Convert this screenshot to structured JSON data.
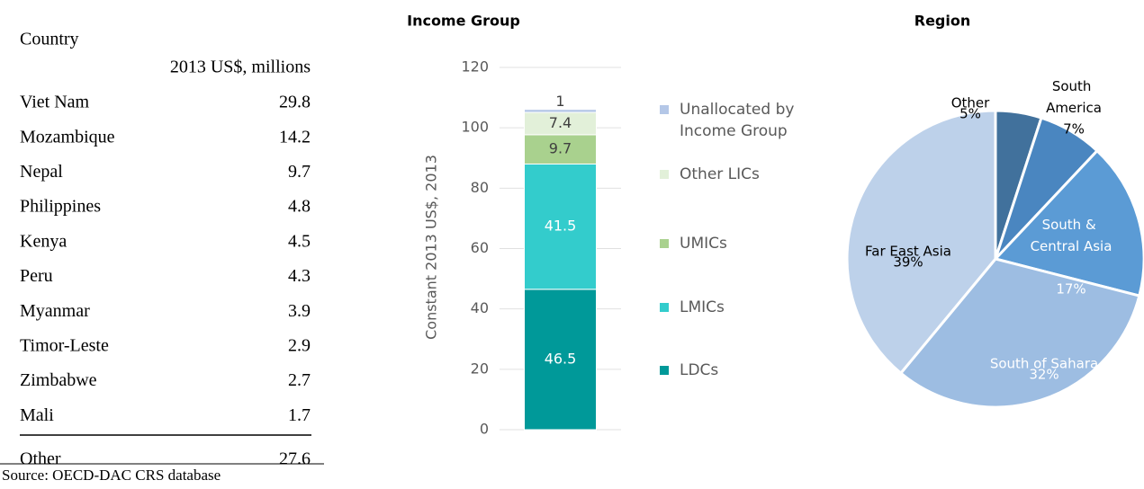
{
  "table": {
    "header": [
      "Country",
      "2013 US$, millions"
    ],
    "rows": [
      [
        "Viet Nam",
        29.8
      ],
      [
        "Mozambique",
        14.2
      ],
      [
        "Nepal",
        9.7
      ],
      [
        "Philippines",
        4.8
      ],
      [
        "Kenya",
        4.5
      ],
      [
        "Peru",
        4.3
      ],
      [
        "Myanmar",
        3.9
      ],
      [
        "Timor-Leste",
        2.9
      ],
      [
        "Zimbabwe",
        2.7
      ],
      [
        "Mali",
        1.7
      ],
      [
        "Other",
        27.6
      ]
    ],
    "source": "Source: OECD-DAC CRS database"
  },
  "chart_data": [
    {
      "type": "bar",
      "title": "Income Group",
      "ylabel": "Constant 2013 US$, 2013",
      "categories": [
        null
      ],
      "series": [
        {
          "name": "LDCs",
          "color": "#009999",
          "values": [
            46.5
          ]
        },
        {
          "name": "LMICs",
          "color": "#33cccc",
          "values": [
            41.5
          ]
        },
        {
          "name": "UMICs",
          "color": "#a9d18e",
          "values": [
            9.7
          ]
        },
        {
          "name": "Other LICs",
          "color": "#e2f0d9",
          "values": [
            7.4
          ]
        },
        {
          "name": "Unallocated by Income Group",
          "color": "#b4c7e7",
          "values": [
            1
          ]
        }
      ],
      "ylim": [
        0,
        120
      ],
      "yticks": [
        0,
        20,
        40,
        60,
        80,
        100,
        120
      ],
      "grid": true,
      "stacked": true,
      "legend": "right"
    },
    {
      "type": "pie",
      "title": "Region",
      "categories": [
        "Other",
        "South America",
        "South & Central Asia",
        "South of Sahara",
        "Far East Asia"
      ],
      "values": [
        5,
        7,
        17,
        32,
        39
      ],
      "value_labels": [
        "5%",
        "7%",
        "17%",
        "32%",
        "39%"
      ],
      "colors": [
        "#41719c",
        "#4a86c0",
        "#5b9bd5",
        "#9dbde2",
        "#bdd1ea"
      ]
    }
  ]
}
